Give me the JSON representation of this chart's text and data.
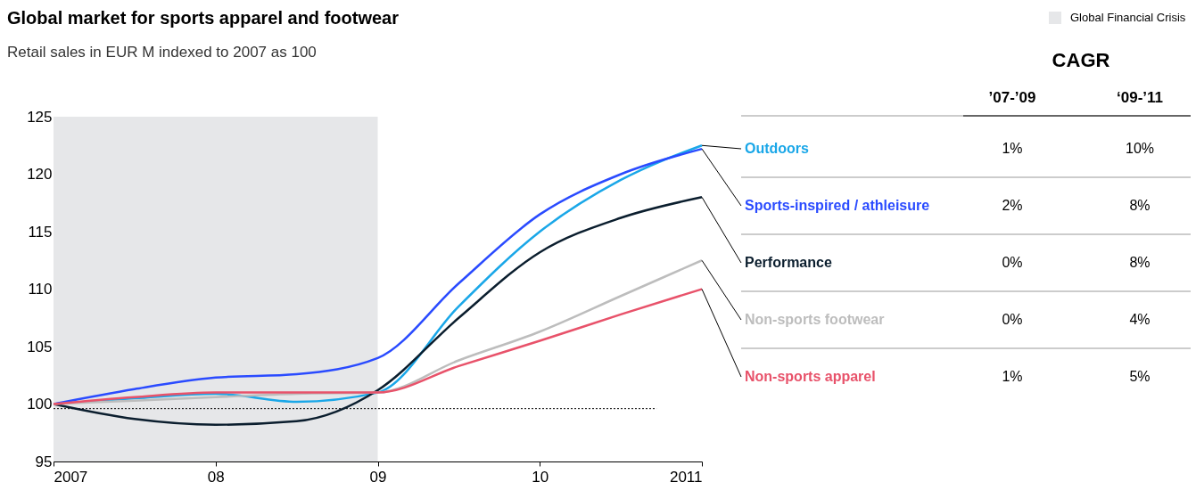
{
  "chart_data": {
    "type": "line",
    "title": "Global market for sports apparel and footwear",
    "subtitle": "Retail sales in EUR M indexed to 2007 as 100",
    "x": [
      2007,
      2007.5,
      2008,
      2008.5,
      2009,
      2009.5,
      2010,
      2010.5,
      2011
    ],
    "series": [
      {
        "name": "Outdoors",
        "color": "#1aa7e8",
        "values": [
          100,
          100.5,
          100.9,
          100.2,
          101,
          108.5,
          115,
          119.5,
          122.5
        ]
      },
      {
        "name": "Sports-inspired / athleisure",
        "color": "#2a4bff",
        "values": [
          100,
          101.3,
          102.3,
          102.6,
          104,
          110.5,
          116.5,
          120,
          122.2
        ]
      },
      {
        "name": "Performance",
        "color": "#0b1e2e",
        "values": [
          100,
          98.7,
          98.2,
          98.5,
          101.2,
          107.5,
          113.2,
          116.2,
          118
        ]
      },
      {
        "name": "Non-sports footwear",
        "color": "#bdbdbd",
        "values": [
          100,
          100.3,
          100.6,
          100.9,
          101,
          103.8,
          106.3,
          109.4,
          112.5
        ]
      },
      {
        "name": "Non-sports apparel",
        "color": "#e8526a",
        "values": [
          100,
          100.6,
          101,
          101,
          101,
          103.3,
          105.5,
          107.8,
          110
        ]
      }
    ],
    "xlim": [
      2007,
      2011
    ],
    "xticks": [
      2007,
      {
        "value": 2008,
        "label": "08"
      },
      {
        "value": 2009,
        "label": "09"
      },
      {
        "value": 2010,
        "label": "10"
      },
      2011
    ],
    "ylim": [
      95,
      125
    ],
    "yticks": [
      95,
      100,
      105,
      110,
      115,
      120,
      125
    ],
    "bands": [
      {
        "axis": "x",
        "from": 2007,
        "to": 2009,
        "label": "Global Financial Crisis",
        "color": "#e6e7e9"
      }
    ],
    "ref_lines": [
      {
        "axis": "y",
        "value": 99.6,
        "color": "#000000",
        "line_style": "dotted"
      }
    ],
    "annotations": [
      "CAGR",
      "’07-’09",
      "‘09-’11",
      "1%",
      "10%",
      "2%",
      "8%",
      "0%",
      "8%",
      "0%",
      "4%",
      "1%",
      "5%"
    ],
    "grid": false,
    "legend": "top right",
    "marker": "none",
    "line_style": "solid"
  }
}
